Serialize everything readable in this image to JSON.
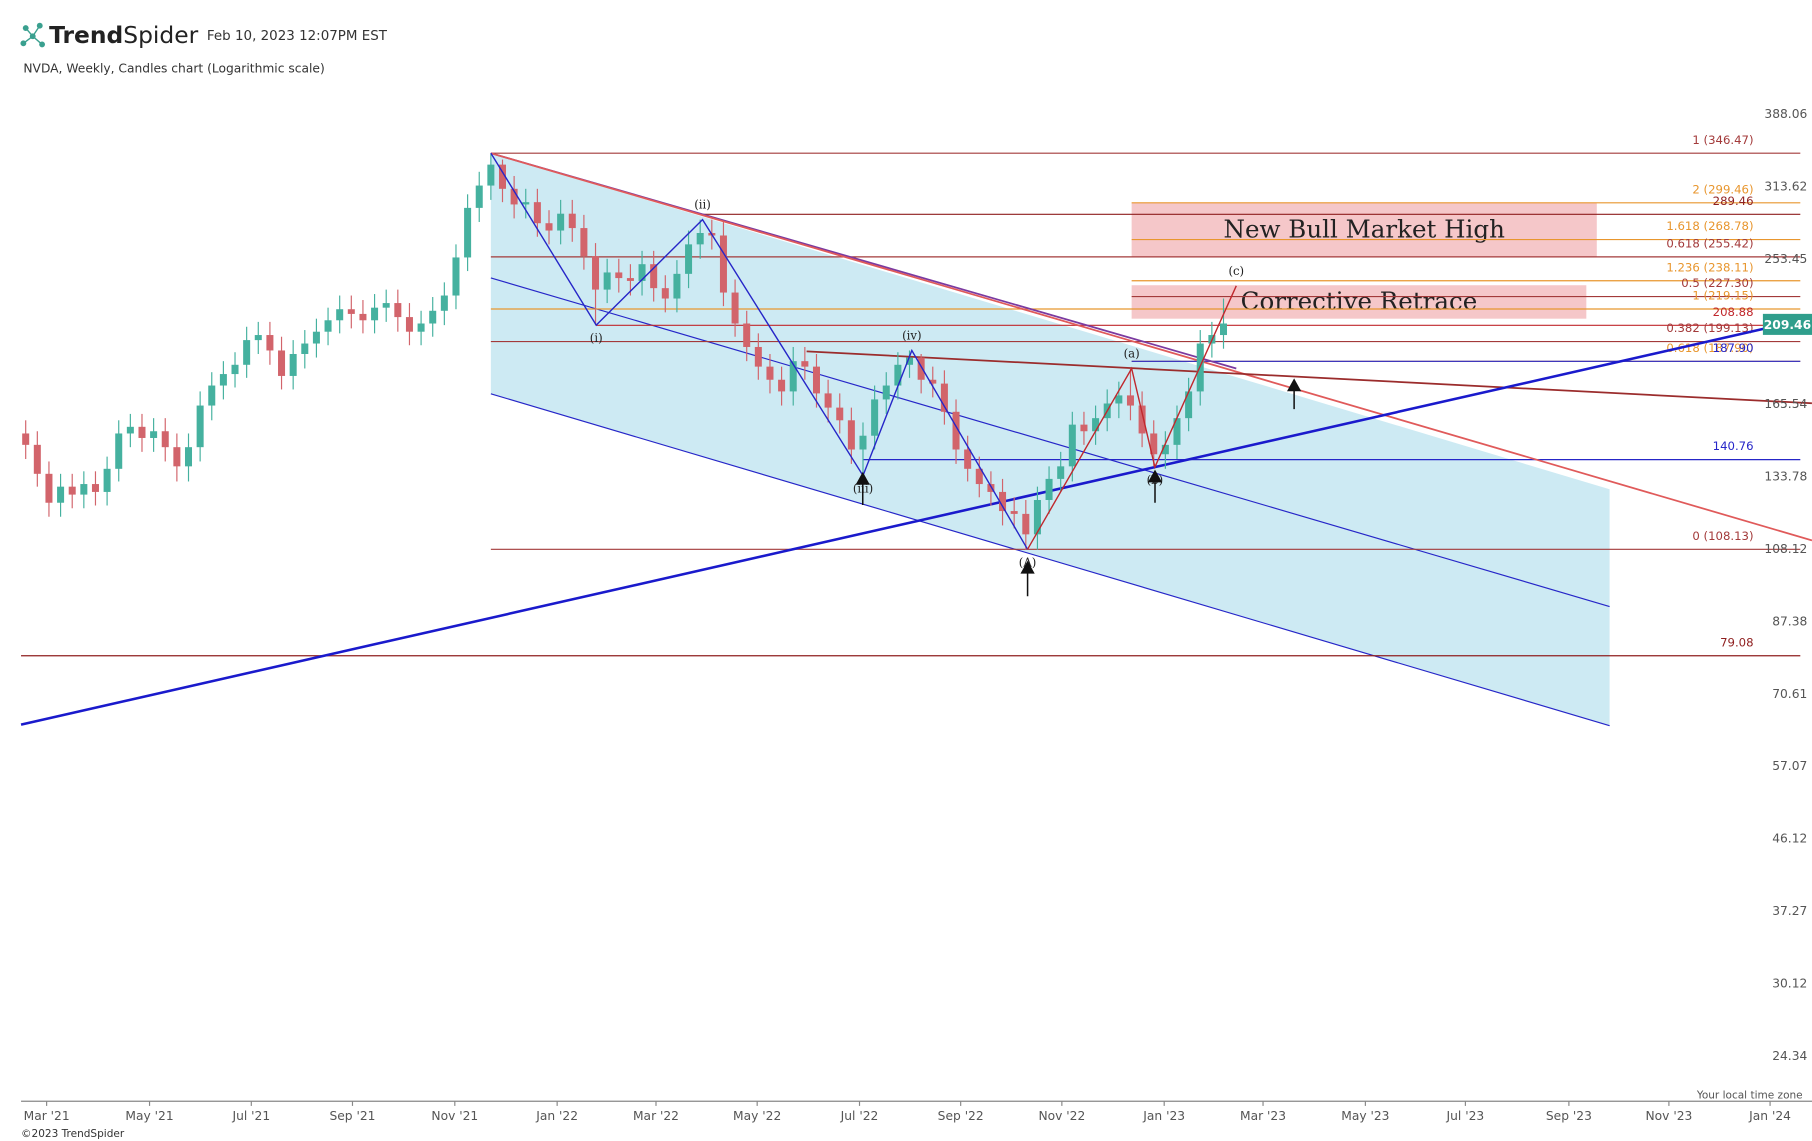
{
  "header": {
    "brand_bold": "Trend",
    "brand_light": "Spider",
    "timestamp": "Feb 10, 2023 12:07PM EST",
    "footer": "©2023 TrendSpider"
  },
  "chart_data": {
    "type": "candlestick",
    "title": "NVDA, Weekly, Candles chart (Logarithmic scale)",
    "note": "Your local time zone",
    "log_scale": true,
    "up_color": "#45b19f",
    "down_color": "#d2646b",
    "x": [
      0,
      1,
      2,
      3,
      4,
      5,
      6,
      7,
      8,
      9,
      10,
      11,
      12,
      13,
      14,
      15,
      16,
      17,
      18,
      19,
      20,
      21,
      22,
      23,
      24,
      25,
      26,
      27,
      28,
      29,
      30,
      31,
      32,
      33,
      34,
      35,
      36,
      37,
      38,
      39,
      40,
      41,
      42,
      43,
      44,
      45,
      46,
      47,
      48,
      49,
      50,
      51,
      52,
      53,
      54,
      55,
      56,
      57,
      58,
      59,
      60,
      61,
      62,
      63,
      64,
      65,
      66,
      67,
      68,
      69,
      70,
      71,
      72,
      73,
      74,
      75,
      76,
      77,
      78,
      79,
      80,
      81,
      82,
      83,
      84,
      85,
      86,
      87,
      88,
      89,
      90,
      91,
      92,
      93,
      94,
      95,
      96,
      97,
      98,
      99,
      100,
      101,
      102,
      103
    ],
    "open": [
      152,
      147,
      135,
      124,
      130,
      127,
      131,
      128,
      137,
      152,
      155,
      150,
      153,
      146,
      138,
      146,
      165,
      175,
      181,
      186,
      200,
      203,
      194,
      180,
      192,
      198,
      205,
      212,
      219,
      216,
      212,
      220,
      223,
      214,
      205,
      210,
      218,
      228,
      255,
      295,
      315,
      335,
      312,
      298,
      300,
      282,
      276,
      290,
      278,
      256,
      232,
      244,
      240,
      238,
      250,
      233,
      226,
      243,
      265,
      274,
      272,
      230,
      210,
      196,
      185,
      178,
      172,
      188,
      185,
      171,
      164,
      158,
      145,
      151,
      168,
      175,
      186,
      190,
      178,
      176,
      162,
      145,
      137,
      131,
      128,
      121,
      120,
      113,
      125,
      133,
      138,
      156,
      153,
      159,
      166,
      170,
      165,
      152,
      143,
      147,
      159,
      172,
      198,
      203
    ],
    "high": [
      158,
      153,
      140,
      135,
      135,
      136,
      136,
      142,
      158,
      161,
      161,
      159,
      159,
      152,
      152,
      172,
      182,
      188,
      193,
      208,
      211,
      211,
      202,
      200,
      206,
      213,
      220,
      228,
      228,
      225,
      229,
      232,
      232,
      223,
      218,
      227,
      237,
      265,
      307,
      328,
      346,
      340,
      324,
      312,
      312,
      293,
      302,
      302,
      289,
      266,
      254,
      254,
      250,
      260,
      260,
      242,
      253,
      276,
      285,
      285,
      283,
      239,
      218,
      204,
      192,
      185,
      196,
      196,
      192,
      178,
      171,
      164,
      157,
      175,
      182,
      193,
      194,
      192,
      185,
      183,
      168,
      151,
      142,
      136,
      133,
      126,
      125,
      130,
      138,
      144,
      162,
      162,
      165,
      173,
      177,
      184,
      172,
      158,
      153,
      165,
      179,
      206,
      211,
      226
    ],
    "low": [
      141,
      130,
      119,
      119,
      122,
      122,
      123,
      123,
      132,
      146,
      144,
      144,
      140,
      132,
      132,
      140,
      158,
      168,
      174,
      179,
      192,
      186,
      173,
      173,
      184,
      190,
      197,
      204,
      207,
      204,
      204,
      211,
      205,
      197,
      197,
      202,
      209,
      219,
      245,
      283,
      302,
      300,
      286,
      286,
      271,
      265,
      265,
      267,
      246,
      209,
      223,
      230,
      228,
      228,
      224,
      217,
      217,
      233,
      254,
      261,
      221,
      202,
      188,
      178,
      171,
      165,
      165,
      178,
      164,
      157,
      152,
      139,
      134,
      145,
      161,
      168,
      179,
      171,
      169,
      156,
      139,
      132,
      126,
      123,
      116,
      115,
      108,
      108,
      120,
      128,
      132,
      147,
      147,
      153,
      159,
      158,
      146,
      138,
      137,
      141,
      153,
      165,
      190,
      195
    ],
    "close": [
      147,
      135,
      124,
      130,
      127,
      131,
      128,
      137,
      152,
      155,
      150,
      153,
      146,
      138,
      146,
      165,
      175,
      181,
      186,
      200,
      203,
      194,
      180,
      192,
      198,
      205,
      212,
      219,
      216,
      212,
      220,
      223,
      214,
      205,
      210,
      218,
      228,
      255,
      295,
      315,
      335,
      312,
      298,
      300,
      282,
      276,
      290,
      278,
      256,
      232,
      244,
      240,
      238,
      250,
      233,
      226,
      243,
      265,
      274,
      272,
      230,
      210,
      196,
      185,
      178,
      172,
      188,
      185,
      171,
      164,
      158,
      145,
      151,
      168,
      175,
      186,
      190,
      178,
      176,
      162,
      145,
      137,
      131,
      128,
      121,
      120,
      113,
      125,
      133,
      138,
      156,
      153,
      159,
      166,
      170,
      165,
      152,
      143,
      147,
      159,
      172,
      198,
      203,
      210
    ],
    "last_price": 209.46,
    "last_price_color": "#2f9e8c",
    "xlim": [
      -0.4,
      152.6
    ],
    "xticks": [
      {
        "value": 1.8,
        "label": "Mar '21"
      },
      {
        "value": 10.65,
        "label": "May '21"
      },
      {
        "value": 19.4,
        "label": "Jul '21"
      },
      {
        "value": 28.1,
        "label": "Sep '21"
      },
      {
        "value": 36.9,
        "label": "Nov '21"
      },
      {
        "value": 45.7,
        "label": "Jan '22"
      },
      {
        "value": 54.2,
        "label": "Mar '22"
      },
      {
        "value": 62.9,
        "label": "May '22"
      },
      {
        "value": 71.7,
        "label": "Jul '22"
      },
      {
        "value": 80.4,
        "label": "Sep '22"
      },
      {
        "value": 89.1,
        "label": "Nov '22"
      },
      {
        "value": 97.9,
        "label": "Jan '23"
      },
      {
        "value": 106.4,
        "label": "Mar '23"
      },
      {
        "value": 115.2,
        "label": "May '23"
      },
      {
        "value": 123.8,
        "label": "Jul '23"
      },
      {
        "value": 132.7,
        "label": "Sep '23"
      },
      {
        "value": 141.3,
        "label": "Nov '23"
      },
      {
        "value": 150,
        "label": "Jan '24"
      }
    ],
    "ylim": [
      21.35,
      420
    ],
    "yticks": [
      388.06,
      313.62,
      253.45,
      165.54,
      133.78,
      108.12,
      87.38,
      70.61,
      57.07,
      46.12,
      37.27,
      30.12,
      24.34
    ],
    "channel": {
      "fill": "#cdeaf3",
      "line_color": "#2626c8",
      "upper": [
        [
          40,
          346.47
        ],
        [
          136.2,
          129
        ]
      ],
      "middle": [
        [
          40,
          240.1
        ],
        [
          136.2,
          91.4
        ]
      ],
      "lower": [
        [
          40,
          170.8
        ],
        [
          136.2,
          64.4
        ]
      ]
    },
    "levels": [
      {
        "value": 346.47,
        "label": "1 (346.47)",
        "color": "#a33a3a",
        "start": 40
      },
      {
        "value": 299.46,
        "label": "2 (299.46)",
        "color": "#e8962e",
        "start": 95.1
      },
      {
        "value": 289.46,
        "label": "289.46",
        "color": "#8f1f1f",
        "start": 58.2
      },
      {
        "value": 268.78,
        "label": "1.618 (268.78)",
        "color": "#e8962e",
        "start": 95.1
      },
      {
        "value": 255.42,
        "label": "0.618 (255.42)",
        "color": "#a33a3a",
        "start": 40
      },
      {
        "value": 238.11,
        "label": "1.236 (238.11)",
        "color": "#e8962e",
        "start": 95.1
      },
      {
        "value": 227.3,
        "label": "0.5 (227.30)",
        "color": "#a33a3a",
        "start": 95.1
      },
      {
        "value": 219.15,
        "label": "1 (219.15)",
        "color": "#e8962e",
        "start": 40
      },
      {
        "value": 208.88,
        "label": "208.88",
        "color": "#c0282d",
        "start": 49.06
      },
      {
        "value": 199.13,
        "label": "0.382 (199.13)",
        "color": "#a33a3a",
        "start": 40
      },
      {
        "value": 187.9,
        "label": "0.618 (187.90)",
        "color": "#e8962e",
        "start": 95.1
      },
      {
        "value": 187.9,
        "label": "187.90",
        "color": "#2626c8",
        "start": 95.1
      },
      {
        "value": 140.76,
        "label": "140.76",
        "color": "#2626c8",
        "start": 72
      },
      {
        "value": 108.13,
        "label": "0 (108.13)",
        "color": "#a33a3a",
        "start": 40
      },
      {
        "value": 79.08,
        "label": "79.08",
        "color": "#8f1f1f",
        "start": -0.4
      }
    ],
    "boxes": [
      {
        "label": "New Bull Market High",
        "low": 255.42,
        "high": 299.46,
        "start": 95.1,
        "end": 135.1,
        "color": "#f2b9bb"
      },
      {
        "label": "Corrective Retrace",
        "low": 213,
        "high": 235,
        "start": 95.1,
        "end": 134.2,
        "color": "#f2b9bb"
      }
    ],
    "lines": [
      {
        "color": "#7b3aa0",
        "width": 1.5,
        "points": [
          [
            40,
            346.47
          ],
          [
            104.1,
            184
          ]
        ]
      },
      {
        "color": "#e05a5a",
        "width": 1.5,
        "points": [
          [
            40,
            346.47
          ],
          [
            153.6,
            111
          ]
        ]
      },
      {
        "color": "#9b2c2c",
        "width": 1.5,
        "points": [
          [
            67.15,
            193.5
          ],
          [
            153.6,
            166.1
          ]
        ]
      },
      {
        "color": "#1a1acc",
        "width": 2.2,
        "points": [
          [
            -0.4,
            64.6
          ],
          [
            153.6,
            213.5
          ]
        ]
      }
    ],
    "waves": [
      {
        "color": "#2626c8",
        "points": [
          [
            40,
            346.47
          ],
          [
            49.06,
            209
          ],
          [
            58.2,
            285
          ],
          [
            72,
            134.3
          ],
          [
            76.2,
            194
          ],
          [
            86.15,
            108.13
          ]
        ],
        "labels": [
          null,
          "(i)",
          "(ii)",
          "(iii)",
          "(iv)",
          "(A)"
        ]
      },
      {
        "color": "#c0282d",
        "points": [
          [
            86.15,
            108.13
          ],
          [
            95.1,
            184
          ],
          [
            97.1,
            137.7
          ],
          [
            104.1,
            234.6
          ]
        ],
        "labels": [
          null,
          "(a)",
          "(b)",
          "(c)"
        ]
      }
    ]
  }
}
